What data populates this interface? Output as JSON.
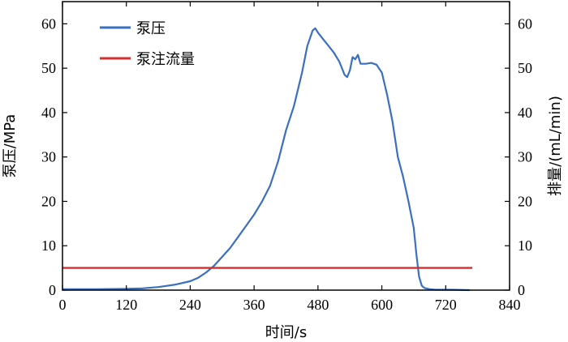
{
  "chart_data": {
    "type": "line",
    "xlabel": "时间/s",
    "ylabel_left": "泵压/MPa",
    "ylabel_right": "排量/(mL/min)",
    "xlim": [
      0,
      840
    ],
    "ylim_left": [
      0,
      65
    ],
    "ylim_right": [
      0,
      65
    ],
    "x_ticks": [
      0,
      120,
      240,
      360,
      480,
      600,
      720,
      840
    ],
    "y_ticks_left": [
      0,
      10,
      20,
      30,
      40,
      50,
      60
    ],
    "y_ticks_right": [
      0,
      10,
      20,
      30,
      40,
      50,
      60
    ],
    "legend_position": "top-left",
    "series": [
      {
        "name": "泵压",
        "color": "#3b6fc0",
        "axis": "left",
        "x": [
          0,
          60,
          120,
          150,
          180,
          210,
          240,
          255,
          270,
          285,
          300,
          315,
          330,
          345,
          360,
          375,
          390,
          405,
          420,
          435,
          450,
          460,
          470,
          475,
          480,
          490,
          500,
          510,
          520,
          530,
          535,
          540,
          545,
          550,
          555,
          560,
          570,
          580,
          590,
          600,
          610,
          620,
          630,
          640,
          650,
          660,
          665,
          670,
          675,
          680,
          690,
          700,
          730,
          765
        ],
        "y": [
          0.2,
          0.2,
          0.3,
          0.4,
          0.7,
          1.2,
          2.0,
          2.8,
          4.0,
          5.5,
          7.5,
          9.5,
          12.0,
          14.5,
          17.0,
          20.0,
          23.5,
          29.0,
          36.0,
          41.5,
          49.0,
          55.0,
          58.5,
          59.0,
          58.0,
          56.5,
          55.0,
          53.5,
          51.5,
          48.5,
          48.0,
          49.5,
          52.5,
          52.0,
          53.0,
          51.0,
          51.0,
          51.2,
          50.8,
          49.0,
          44.0,
          38.0,
          30.0,
          25.5,
          20.0,
          14.0,
          8.0,
          3.0,
          1.0,
          0.5,
          0.2,
          0.1,
          0.1,
          0.0
        ]
      },
      {
        "name": "泵注流量",
        "color": "#d32f2f",
        "axis": "right",
        "x": [
          0,
          770
        ],
        "y": [
          5,
          5
        ]
      }
    ]
  }
}
